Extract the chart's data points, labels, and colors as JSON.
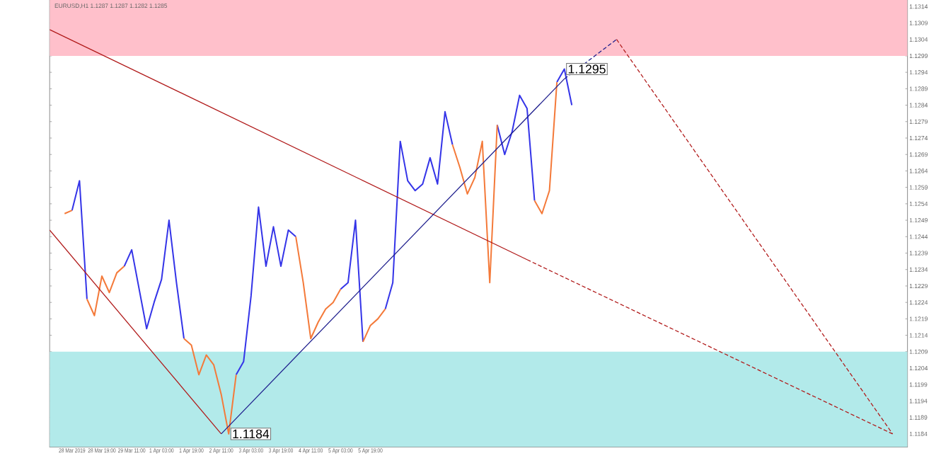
{
  "chart_data": {
    "type": "line",
    "title": "EURUSD,H1 1.1287 1.1287 1.1282 1.1285",
    "categories": [
      null,
      null,
      null,
      "28 Mar 2019",
      null,
      null,
      null,
      "28 Mar 19:00",
      null,
      null,
      null,
      "29 Mar 11:00",
      null,
      null,
      null,
      "1 Apr 03:00",
      null,
      null,
      null,
      "1 Apr 19:00",
      null,
      null,
      null,
      "2 Apr 11:00",
      null,
      null,
      null,
      "3 Apr 03:00",
      null,
      null,
      null,
      "3 Apr 19:00",
      null,
      null,
      null,
      "4 Apr 11:00",
      null,
      null,
      null,
      "5 Apr 03:00",
      null,
      null,
      null,
      "5 Apr 19:00",
      null,
      null,
      null,
      null,
      null,
      null,
      null,
      null,
      null,
      null,
      null,
      null,
      null,
      null,
      null,
      null,
      null,
      null,
      null,
      null,
      null,
      null,
      null,
      null,
      null,
      null,
      null,
      null,
      null,
      null,
      null,
      null,
      null,
      null,
      null,
      null,
      null,
      null,
      null,
      null,
      null,
      null,
      null,
      null,
      null,
      null,
      null,
      null,
      null,
      null,
      null,
      null,
      null,
      null,
      null,
      null,
      null,
      null,
      null,
      null,
      null,
      null,
      null,
      null,
      null,
      null,
      null,
      null,
      null,
      null,
      null,
      null
    ],
    "ylim": [
      1.118,
      1.1316
    ],
    "yticks": [
      1.1184,
      1.1189,
      1.1194,
      1.1199,
      1.1204,
      1.1209,
      1.1214,
      1.1219,
      1.1224,
      1.1229,
      1.1234,
      1.1239,
      1.1244,
      1.1249,
      1.1254,
      1.1259,
      1.1264,
      1.1269,
      1.1274,
      1.1279,
      1.1284,
      1.1289,
      1.1294,
      1.1299,
      1.1304,
      1.1309,
      1.1314
    ],
    "bands": [
      {
        "axis": "y",
        "from": 1.1299,
        "to": 1.1316,
        "color": "#ffc0cb"
      },
      {
        "axis": "y",
        "from": 1.118,
        "to": 1.1209,
        "color": "#b2eaea"
      }
    ],
    "series": [
      {
        "color": "#3535e8",
        "values": [
          null,
          null,
          null,
          1.1252,
          1.1261,
          1.1225,
          null,
          null,
          null,
          null,
          1.1235,
          1.124,
          1.1228,
          1.1216,
          1.1224,
          1.1231,
          1.1249,
          1.123,
          1.1213,
          null,
          null,
          null,
          null,
          null,
          null,
          1.1202,
          1.1206,
          1.1226,
          1.1253,
          1.1235,
          1.1247,
          1.1235,
          1.1246,
          1.1244,
          null,
          null,
          null,
          null,
          null,
          1.1228,
          1.123,
          1.1249,
          1.1212,
          null,
          null,
          1.1222,
          1.123,
          1.1273,
          1.1261,
          1.1258,
          1.126,
          1.1268,
          1.126,
          1.1282,
          1.1272,
          null,
          null,
          null,
          null,
          null,
          1.1278,
          1.1269,
          1.1276,
          1.1287,
          1.1283,
          1.1255,
          null,
          null,
          1.1291,
          1.1295,
          1.1284,
          null,
          null,
          null,
          null,
          null,
          null,
          null,
          null,
          null,
          null,
          null,
          null,
          null,
          null,
          null,
          null,
          null,
          null,
          null,
          null,
          null,
          null,
          null,
          null,
          null,
          null,
          null,
          null,
          null,
          null,
          null,
          null,
          null,
          null,
          null,
          null,
          null,
          null,
          null,
          null,
          null,
          null,
          null,
          null,
          null
        ]
      },
      {
        "color": "#f47a3a",
        "values": [
          null,
          null,
          1.1251,
          1.1252,
          null,
          1.1225,
          1.122,
          1.1232,
          1.1227,
          1.1233,
          1.1235,
          null,
          null,
          null,
          null,
          null,
          null,
          null,
          1.1213,
          1.1211,
          1.1202,
          1.1208,
          1.1205,
          1.1196,
          1.1184,
          1.1202,
          null,
          null,
          null,
          null,
          null,
          null,
          null,
          1.1244,
          1.123,
          1.1213,
          1.1218,
          1.1222,
          1.1224,
          1.1228,
          null,
          null,
          1.1212,
          1.1217,
          1.1219,
          1.1222,
          null,
          null,
          null,
          null,
          null,
          null,
          null,
          null,
          1.1272,
          1.1265,
          1.1257,
          1.1262,
          1.1273,
          1.123,
          1.1278,
          null,
          null,
          null,
          null,
          1.1255,
          1.1251,
          1.1258,
          1.1291,
          null,
          null,
          null,
          null,
          null,
          null,
          null,
          null,
          null,
          null,
          null,
          null,
          null,
          null,
          null,
          null,
          null,
          null,
          null,
          null,
          null,
          null,
          null,
          null,
          null,
          null,
          null,
          null,
          null,
          null,
          null,
          null,
          null,
          null,
          null,
          null,
          null,
          null,
          null,
          null,
          null,
          null,
          null,
          null,
          null,
          null,
          null
        ]
      },
      {
        "color": "#b01818",
        "values": [
          1.1307,
          null,
          null,
          null,
          null,
          null,
          null,
          null,
          null,
          null,
          null,
          null,
          null,
          null,
          null,
          null,
          null,
          null,
          null,
          null,
          null,
          null,
          null,
          null,
          null,
          null,
          null,
          null,
          null,
          null,
          null,
          null,
          null,
          null,
          null,
          null,
          null,
          null,
          null,
          null,
          null,
          null,
          null,
          null,
          null,
          null,
          null,
          null,
          null,
          null,
          null,
          null,
          null,
          null,
          null,
          null,
          null,
          null,
          null,
          null,
          null,
          null,
          null,
          null,
          1.1237,
          null,
          null,
          null,
          null,
          null,
          null,
          null,
          null,
          null,
          null,
          null,
          null,
          null,
          null,
          null,
          null,
          null,
          null,
          null,
          null,
          null,
          null,
          null,
          null,
          null,
          null,
          null,
          null,
          null,
          null,
          null,
          null,
          null,
          null,
          null,
          null,
          null,
          null,
          null,
          null,
          null,
          null,
          null,
          null,
          null,
          null,
          null,
          null,
          null,
          null,
          null
        ]
      },
      {
        "color": "#b01818",
        "line_style": "dashed",
        "values": [
          null,
          null,
          null,
          null,
          null,
          null,
          null,
          null,
          null,
          null,
          null,
          null,
          null,
          null,
          null,
          null,
          null,
          null,
          null,
          null,
          null,
          null,
          null,
          null,
          null,
          null,
          null,
          null,
          null,
          null,
          null,
          null,
          null,
          null,
          null,
          null,
          null,
          null,
          null,
          null,
          null,
          null,
          null,
          null,
          null,
          null,
          null,
          null,
          null,
          null,
          null,
          null,
          null,
          null,
          null,
          null,
          null,
          null,
          null,
          null,
          null,
          null,
          null,
          null,
          1.1237,
          null,
          null,
          null,
          null,
          null,
          null,
          null,
          null,
          null,
          null,
          null,
          null,
          null,
          null,
          null,
          null,
          null,
          null,
          null,
          null,
          null,
          null,
          null,
          null,
          null,
          null,
          null,
          null,
          null,
          null,
          null,
          null,
          null,
          null,
          null,
          null,
          null,
          null,
          null,
          null,
          null,
          null,
          null,
          null,
          null,
          null,
          null,
          null,
          1.1184,
          null,
          null
        ]
      },
      {
        "color": "#b01818",
        "values": [
          1.1246,
          null,
          null,
          null,
          null,
          null,
          null,
          null,
          null,
          null,
          null,
          null,
          null,
          null,
          null,
          null,
          null,
          null,
          null,
          null,
          null,
          null,
          null,
          1.1184,
          null,
          null,
          null,
          null,
          null,
          null,
          null,
          null,
          null,
          null,
          null,
          null,
          null,
          null,
          null,
          null,
          null,
          null,
          null,
          null,
          null,
          null,
          null,
          null,
          null,
          null,
          null,
          null,
          null,
          null,
          null,
          null,
          null,
          null,
          null,
          null,
          null,
          null,
          null,
          null,
          null,
          null,
          null,
          null,
          null,
          null,
          null,
          null,
          null,
          null,
          null,
          null,
          null,
          null,
          null,
          null,
          null,
          null,
          null,
          null,
          null,
          null,
          null,
          null,
          null,
          null,
          null,
          null,
          null,
          null,
          null,
          null,
          null,
          null,
          null,
          null,
          null,
          null,
          null,
          null,
          null,
          null,
          null,
          null,
          null,
          null,
          null,
          null,
          null,
          null,
          null,
          null
        ]
      },
      {
        "color": "#1c1c8c",
        "values": [
          null,
          null,
          null,
          null,
          null,
          null,
          null,
          null,
          null,
          null,
          null,
          null,
          null,
          null,
          null,
          null,
          null,
          null,
          null,
          null,
          null,
          null,
          null,
          1.1184,
          null,
          null,
          null,
          null,
          null,
          null,
          null,
          null,
          null,
          null,
          null,
          null,
          null,
          null,
          null,
          null,
          null,
          null,
          null,
          null,
          null,
          null,
          null,
          null,
          null,
          null,
          null,
          null,
          null,
          null,
          null,
          null,
          null,
          null,
          null,
          null,
          null,
          null,
          null,
          null,
          null,
          null,
          null,
          null,
          null,
          1.1292,
          null,
          null,
          null,
          null,
          null,
          null,
          null,
          null,
          null,
          null,
          null,
          null,
          null,
          null,
          null,
          null,
          null,
          null,
          null,
          null,
          null,
          null,
          null,
          null,
          null,
          null,
          null,
          null,
          null,
          null,
          null,
          null,
          null,
          null,
          null,
          null,
          null,
          null,
          null,
          null,
          null,
          null,
          null,
          null,
          null,
          null
        ]
      },
      {
        "color": "#1c1c8c",
        "line_style": "dashed",
        "values": [
          null,
          null,
          null,
          null,
          null,
          null,
          null,
          null,
          null,
          null,
          null,
          null,
          null,
          null,
          null,
          null,
          null,
          null,
          null,
          null,
          null,
          null,
          null,
          null,
          null,
          null,
          null,
          null,
          null,
          null,
          null,
          null,
          null,
          null,
          null,
          null,
          null,
          null,
          null,
          null,
          null,
          null,
          null,
          null,
          null,
          null,
          null,
          null,
          null,
          null,
          null,
          null,
          null,
          null,
          null,
          null,
          null,
          null,
          null,
          null,
          null,
          null,
          null,
          null,
          null,
          null,
          null,
          null,
          null,
          1.1292,
          null,
          null,
          null,
          null,
          null,
          null,
          1.1304,
          null,
          null,
          null,
          null,
          null,
          null,
          null,
          null,
          null,
          null,
          null,
          null,
          null,
          null,
          null,
          null,
          null,
          null,
          null,
          null,
          null,
          null,
          null,
          null,
          null,
          null,
          null,
          null,
          null,
          null,
          null,
          null,
          null,
          null,
          null,
          null,
          null,
          null,
          null
        ]
      },
      {
        "color": "#b01818",
        "line_style": "dashed",
        "values": [
          null,
          null,
          null,
          null,
          null,
          null,
          null,
          null,
          null,
          null,
          null,
          null,
          null,
          null,
          null,
          null,
          null,
          null,
          null,
          null,
          null,
          null,
          null,
          null,
          null,
          null,
          null,
          null,
          null,
          null,
          null,
          null,
          null,
          null,
          null,
          null,
          null,
          null,
          null,
          null,
          null,
          null,
          null,
          null,
          null,
          null,
          null,
          null,
          null,
          null,
          null,
          null,
          null,
          null,
          null,
          null,
          null,
          null,
          null,
          null,
          null,
          null,
          null,
          null,
          null,
          null,
          null,
          null,
          null,
          null,
          null,
          null,
          null,
          null,
          null,
          null,
          1.1304,
          null,
          null,
          null,
          null,
          null,
          null,
          null,
          null,
          null,
          null,
          null,
          null,
          null,
          null,
          null,
          null,
          null,
          null,
          null,
          null,
          null,
          null,
          null,
          null,
          null,
          null,
          null,
          null,
          null,
          null,
          null,
          null,
          null,
          null,
          null,
          null,
          1.1184,
          null,
          null
        ]
      }
    ],
    "annotations": [
      "1.1184",
      {
        "text": "1.1295",
        "y": 1.1295
      }
    ],
    "legend": false
  }
}
